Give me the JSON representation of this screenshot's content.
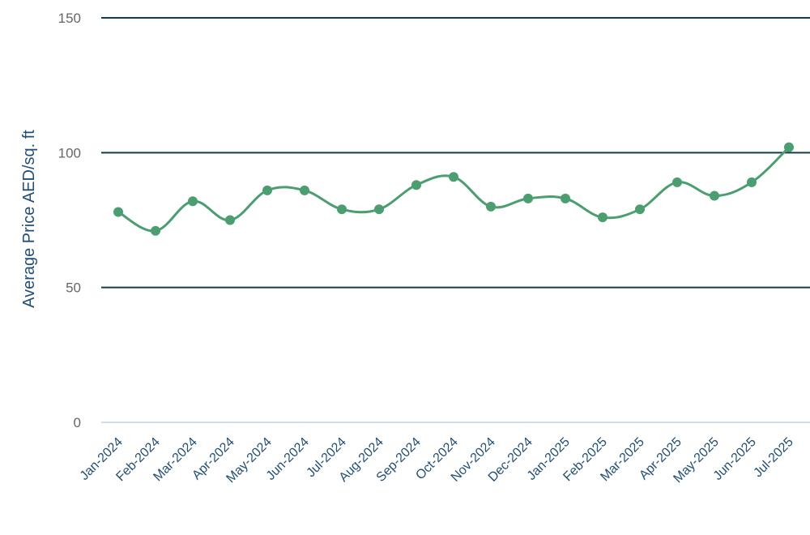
{
  "chart_data": {
    "type": "line",
    "title": "",
    "xlabel": "",
    "ylabel": "Average Price AED/sq. ft",
    "ylim": [
      0,
      150
    ],
    "yticks": [
      0,
      50,
      100,
      150
    ],
    "grid": true,
    "smooth": true,
    "categories": [
      "Jan-2024",
      "Feb-2024",
      "Mar-2024",
      "Apr-2024",
      "May-2024",
      "Jun-2024",
      "Jul-2024",
      "Aug-2024",
      "Sep-2024",
      "Oct-2024",
      "Nov-2024",
      "Dec-2024",
      "Jan-2025",
      "Feb-2025",
      "Mar-2025",
      "Apr-2025",
      "May-2025",
      "Jun-2025",
      "Jul-2025"
    ],
    "series": [
      {
        "values": [
          78,
          71,
          82,
          75,
          86,
          86,
          79,
          79,
          88,
          91,
          80,
          83,
          83,
          76,
          79,
          89,
          84,
          89,
          102
        ]
      }
    ],
    "colors": {
      "line": "#4a9e6f",
      "grid": "#103d4d",
      "baseline": "#c5cfe6"
    }
  }
}
